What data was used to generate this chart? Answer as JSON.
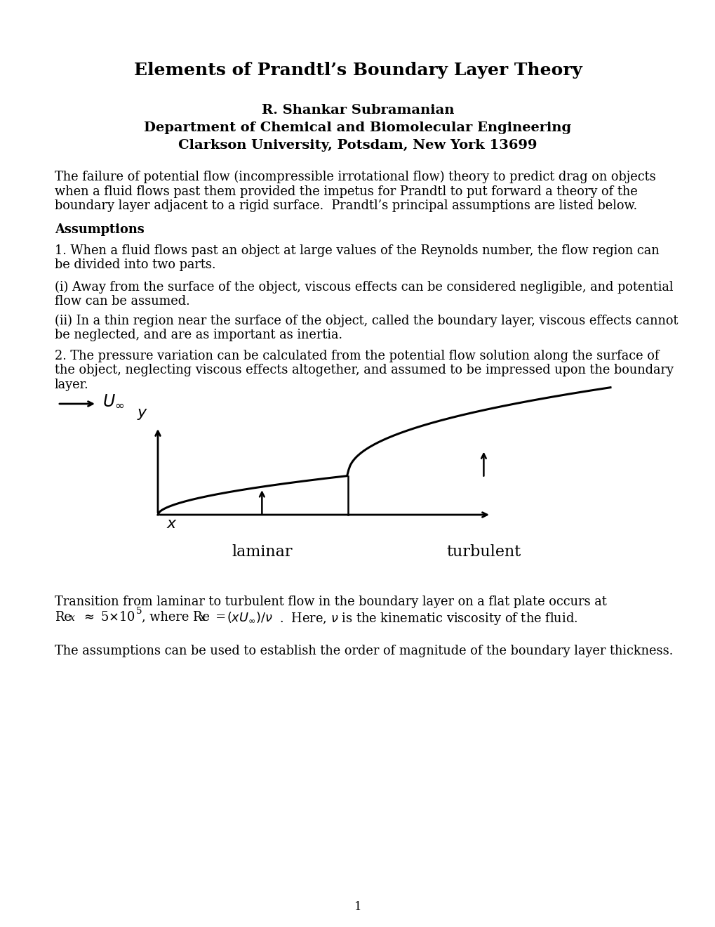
{
  "title": "Elements of Prandtl’s Boundary Layer Theory",
  "author": "R. Shankar Subramanian",
  "dept": "Department of Chemical and Biomolecular Engineering",
  "university": "Clarkson University, Potsdam, New York 13699",
  "intro_line1": "The failure of potential flow (incompressible irrotational flow) theory to predict drag on objects",
  "intro_line2": "when a fluid flows past them provided the impetus for Prandtl to put forward a theory of the",
  "intro_line3": "boundary layer adjacent to a rigid surface.  Prandtl’s principal assumptions are listed below.",
  "assumptions_heading": "Assumptions",
  "assump1_line1": "1. When a fluid flows past an object at large values of the Reynolds number, the flow region can",
  "assump1_line2": "be divided into two parts.",
  "assumpi_line1": "(i) Away from the surface of the object, viscous effects can be considered negligible, and potential",
  "assumpi_line2": "flow can be assumed.",
  "assumpii_line1": "(ii) In a thin region near the surface of the object, called the boundary layer, viscous effects cannot",
  "assumpii_line2": "be neglected, and are as important as inertia.",
  "assump2_line1": "2. The pressure variation can be calculated from the potential flow solution along the surface of",
  "assump2_line2": "the object, neglecting viscous effects altogether, and assumed to be impressed upon the boundary",
  "assump2_line3": "layer.",
  "trans_line1": "Transition from laminar to turbulent flow in the boundary layer on a flat plate occurs at",
  "final_text": "The assumptions can be used to establish the order of magnitude of the boundary layer thickness.",
  "page_number": "1",
  "laminar_label": "laminar",
  "turbulent_label": "turbulent",
  "bg_color": "#ffffff",
  "text_color": "#000000"
}
